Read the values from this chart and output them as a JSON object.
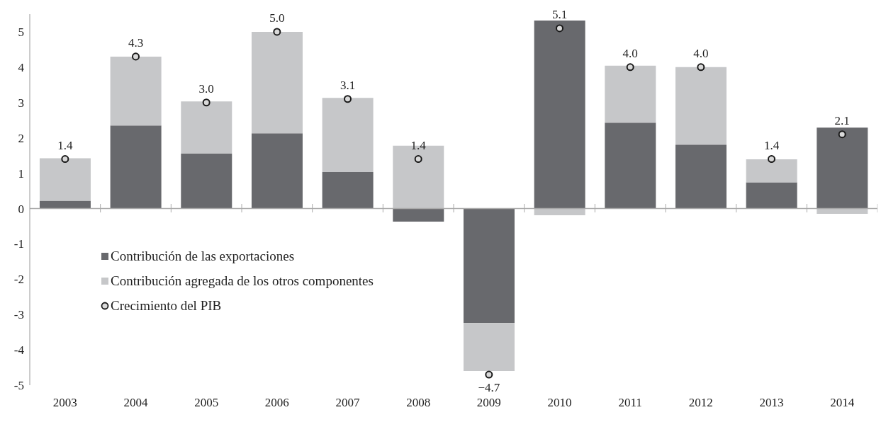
{
  "chart_data": {
    "type": "bar",
    "stacked": true,
    "categories": [
      "2003",
      "2004",
      "2005",
      "2006",
      "2007",
      "2008",
      "2009",
      "2010",
      "2011",
      "2012",
      "2013",
      "2014"
    ],
    "series": [
      {
        "name": "Contribución de las exportaciones",
        "color": "#68696d",
        "values": [
          0.22,
          2.35,
          1.55,
          2.13,
          1.03,
          -0.37,
          -3.24,
          5.32,
          2.43,
          1.81,
          0.74,
          2.29
        ]
      },
      {
        "name": "Contribución agregada de los otros componentes",
        "color": "#c6c7c9",
        "values": [
          1.2,
          1.95,
          1.48,
          2.87,
          2.1,
          1.78,
          -1.36,
          -0.19,
          1.61,
          2.19,
          0.65,
          -0.15
        ]
      },
      {
        "name": "Crecimiento del PIB",
        "type": "scatter",
        "marker": "circle",
        "color": "#d9d9d9",
        "values": [
          1.4,
          4.3,
          3.0,
          5.0,
          3.1,
          1.4,
          -4.7,
          5.1,
          4.0,
          4.0,
          1.4,
          2.1
        ],
        "value_labels": [
          "1.4",
          "4.3",
          "3.0",
          "5.0",
          "3.1",
          "1.4",
          "−4.7",
          "5.1",
          "4.0",
          "4.0",
          "1.4",
          "2.1"
        ]
      }
    ],
    "ylim": [
      -5,
      5.5
    ],
    "yticks": [
      -5,
      -4,
      -3,
      -2,
      -1,
      0,
      1,
      2,
      3,
      4,
      5
    ],
    "ref_lines": [
      {
        "axis": "y",
        "value": 0,
        "color": "#aaaaaa"
      }
    ],
    "legend": "left"
  }
}
